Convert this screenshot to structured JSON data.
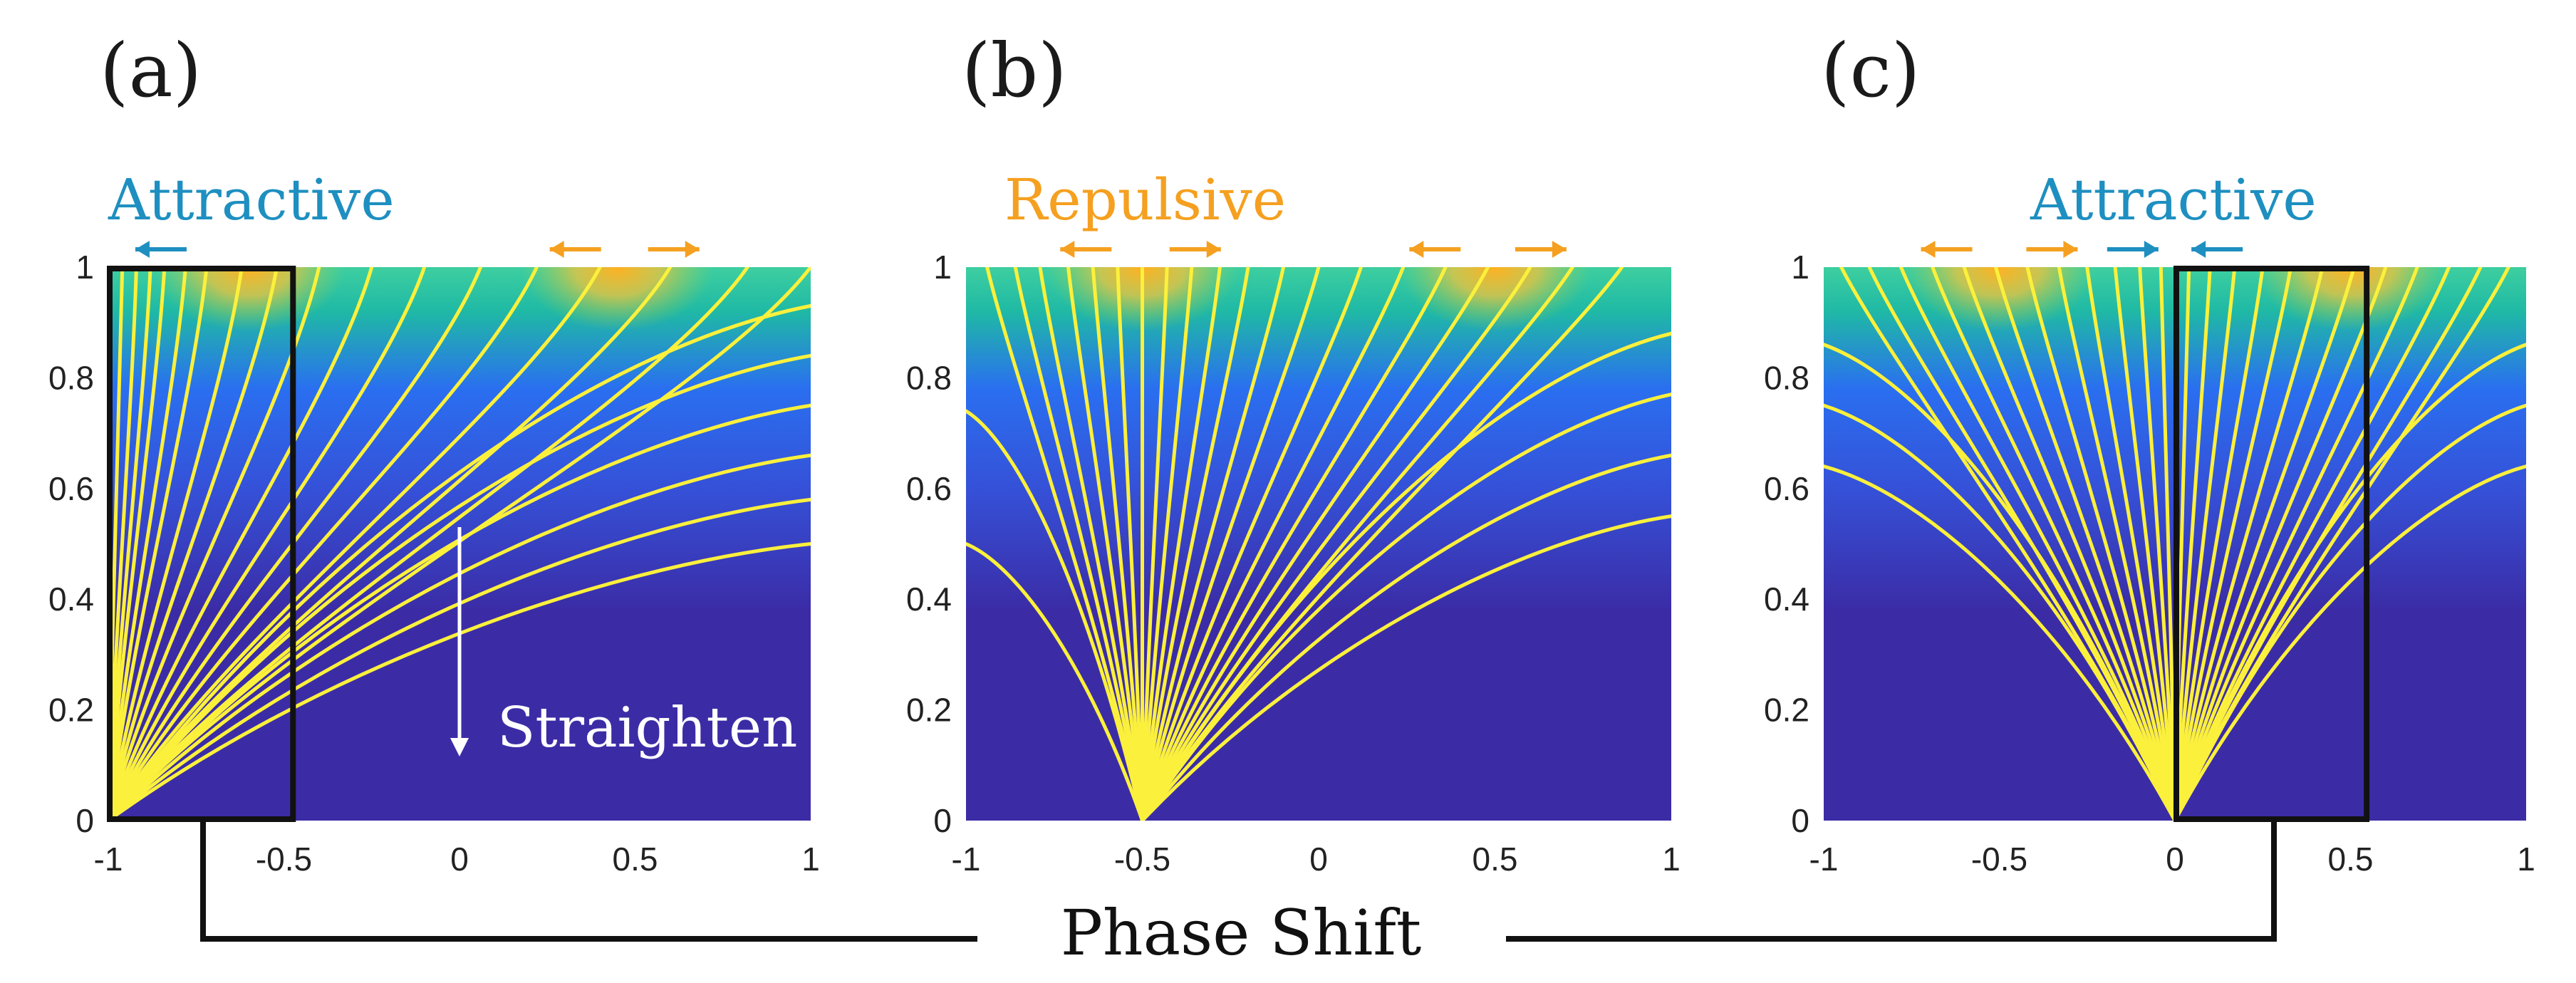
{
  "figure_title": "",
  "x_axis_title": "Phase Shift",
  "colors": {
    "attractive": "#1e8fc0",
    "repulsive": "#f5a020",
    "streamline": "#fbf03c",
    "field_low": "#3b2ca6",
    "field_mid": "#2a6ff0",
    "field_high": "#1fb9a5",
    "peak": "#ffb020",
    "frame": "#111111"
  },
  "chart_data": [
    {
      "type": "streamline-field",
      "panel": "(a)",
      "label": "Attractive",
      "label_color": "attractive",
      "annotation": "Straighten",
      "xlim": [
        -1,
        1
      ],
      "ylim": [
        0,
        1
      ],
      "xticks": [
        "-1",
        "-0.5",
        "0",
        "0.5",
        "1"
      ],
      "yticks": [
        "0",
        "0.2",
        "0.4",
        "0.6",
        "0.8",
        "1"
      ],
      "source_x": -1.0,
      "line_ends": [
        -0.96,
        -0.92,
        -0.88,
        -0.84,
        -0.78,
        -0.72,
        -0.62,
        -0.52,
        -0.4,
        -0.25,
        -0.1,
        0.06,
        0.22,
        0.4,
        0.6,
        0.82,
        1.0
      ],
      "edge_ends_y": [
        0.93,
        0.84,
        0.75,
        0.66,
        0.58,
        0.5
      ],
      "peaks": [
        -0.6,
        0.45
      ],
      "highlight_box": [
        -1.0,
        -0.47
      ],
      "arrows": [
        {
          "x": -0.85,
          "dir": "left",
          "color": "attractive"
        },
        {
          "x": 0.33,
          "dir": "left",
          "color": "repulsive"
        },
        {
          "x": 0.61,
          "dir": "right",
          "color": "repulsive"
        }
      ]
    },
    {
      "type": "streamline-field",
      "panel": "(b)",
      "label": "Repulsive",
      "label_color": "repulsive",
      "xlim": [
        -1,
        1
      ],
      "ylim": [
        0,
        1
      ],
      "xticks": [
        "-1",
        "-0.5",
        "0",
        "0.5",
        "1"
      ],
      "yticks": [
        "0",
        "0.2",
        "0.4",
        "0.6",
        "0.8",
        "1"
      ],
      "source_x": -0.5,
      "line_ends": [
        -0.94,
        -0.86,
        -0.79,
        -0.71,
        -0.64,
        -0.57,
        -0.5,
        -0.43,
        -0.36,
        -0.28,
        -0.2,
        -0.1,
        0.0,
        0.12,
        0.24,
        0.36,
        0.48,
        0.6,
        0.72,
        0.86
      ],
      "edge_ends_y": [
        0.88,
        0.77,
        0.66,
        0.55
      ],
      "left_edge_ends_y": [
        0.5,
        0.74
      ],
      "peaks": [
        -0.5,
        0.5
      ],
      "arrows": [
        {
          "x": -0.66,
          "dir": "left",
          "color": "repulsive"
        },
        {
          "x": -0.35,
          "dir": "right",
          "color": "repulsive"
        },
        {
          "x": 0.33,
          "dir": "left",
          "color": "repulsive"
        },
        {
          "x": 0.63,
          "dir": "right",
          "color": "repulsive"
        }
      ]
    },
    {
      "type": "streamline-field",
      "panel": "(c)",
      "label": "Attractive",
      "label_color": "attractive",
      "xlim": [
        -1,
        1
      ],
      "ylim": [
        0,
        1
      ],
      "xticks": [
        "-1",
        "-0.5",
        "0",
        "0.5",
        "1"
      ],
      "yticks": [
        "0",
        "0.2",
        "0.4",
        "0.6",
        "0.8",
        "1"
      ],
      "source_x": 0.0,
      "line_ends": [
        -0.95,
        -0.87,
        -0.78,
        -0.69,
        -0.6,
        -0.51,
        -0.42,
        -0.33,
        -0.25,
        -0.17,
        -0.1,
        -0.04,
        0.04,
        0.1,
        0.17,
        0.25,
        0.33,
        0.42,
        0.51,
        0.6,
        0.69,
        0.78,
        0.87,
        0.95
      ],
      "left_edge_ends_y": [
        0.64,
        0.75,
        0.86
      ],
      "edge_ends_y": [
        0.64,
        0.75,
        0.86
      ],
      "peaks": [
        -0.5,
        0.5
      ],
      "highlight_box": [
        0.0,
        0.55
      ],
      "arrows": [
        {
          "x": -0.65,
          "dir": "left",
          "color": "repulsive"
        },
        {
          "x": -0.35,
          "dir": "right",
          "color": "repulsive"
        },
        {
          "x": -0.12,
          "dir": "right",
          "color": "attractive"
        },
        {
          "x": 0.12,
          "dir": "left",
          "color": "attractive"
        }
      ]
    }
  ]
}
